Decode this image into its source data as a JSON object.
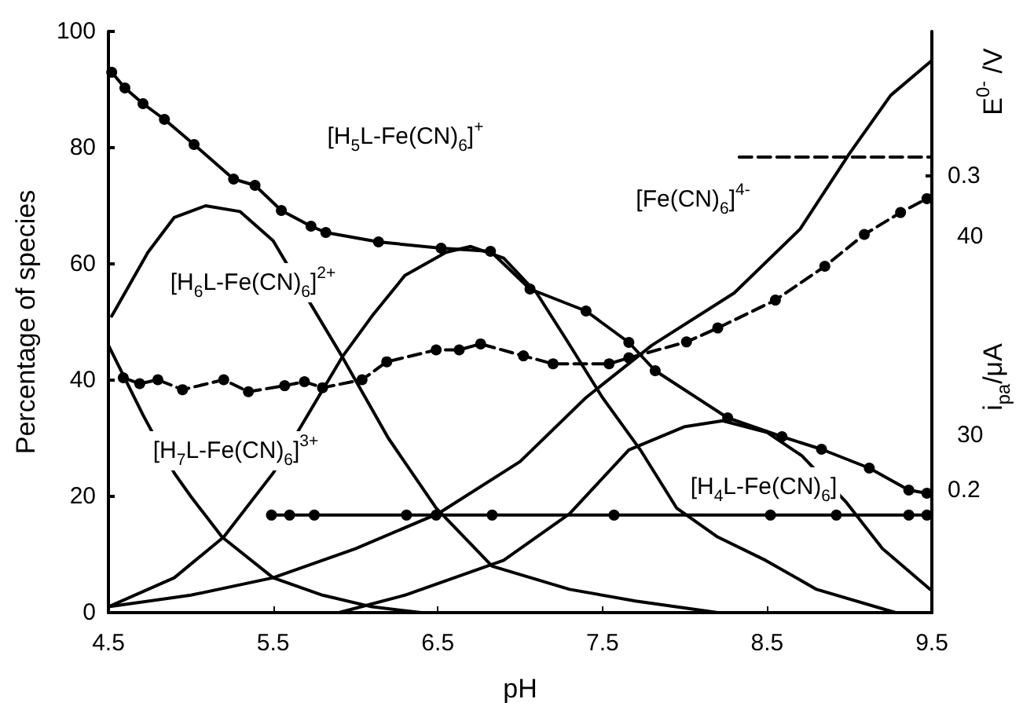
{
  "chart_data": {
    "type": "line",
    "xlabel": "pH",
    "ylabel": "Percentage of species",
    "y2label": "E$^{0-}$ /V",
    "y3label": "i$_{pa}$/μA",
    "xlim": [
      4.5,
      9.5
    ],
    "xticks": [
      4.5,
      5.5,
      6.5,
      7.5,
      8.5,
      9.5
    ],
    "ylim": [
      0,
      100
    ],
    "yticks": [
      0,
      20,
      40,
      60,
      80,
      100
    ],
    "y2lim": [
      0.161,
      0.346
    ],
    "y2ticks": [
      0.2,
      0.3
    ],
    "y3lim": [
      21.1,
      50.3
    ],
    "y3ticks": [
      30,
      40
    ],
    "marker": "none",
    "line_style": "solid",
    "series": [
      {
        "color": "#000000",
        "x": [
          4.5,
          4.71,
          4.9,
          5.0,
          5.19,
          5.5,
          5.8,
          6.1,
          6.4
        ],
        "values": [
          46,
          34,
          24,
          20,
          13,
          6,
          3,
          1,
          0
        ]
      },
      {
        "color": "#000000",
        "x": [
          4.52,
          4.74,
          4.9,
          5.09,
          5.3,
          5.5,
          5.73,
          5.92,
          6.2,
          6.49,
          6.83,
          7.3,
          7.7,
          8.2,
          8.5
        ],
        "values": [
          51,
          62,
          68,
          70,
          69,
          64,
          53,
          44,
          30,
          18,
          8,
          4,
          2,
          0,
          0
        ]
      },
      {
        "color": "#000000",
        "x": [
          4.5,
          4.9,
          5.2,
          5.5,
          5.71,
          5.92,
          6.1,
          6.3,
          6.55,
          6.7,
          6.9,
          7.1,
          7.28,
          7.5,
          7.73,
          7.95,
          8.2,
          8.49,
          8.8,
          9.28
        ],
        "values": [
          1,
          6,
          13,
          24,
          34,
          44,
          51,
          58,
          62,
          63,
          61,
          55,
          47,
          37,
          28,
          18,
          13,
          9,
          4,
          0
        ]
      },
      {
        "color": "#000000",
        "x": [
          5.9,
          6.3,
          6.9,
          7.3,
          7.66,
          8.0,
          8.23,
          8.5,
          8.71,
          8.98,
          9.2,
          9.49
        ],
        "values": [
          0,
          3,
          9,
          17,
          28,
          32,
          33,
          31,
          27,
          19,
          11,
          4
        ]
      },
      {
        "color": "#000000",
        "x": [
          4.5,
          5.0,
          5.5,
          6.0,
          6.5,
          7.0,
          7.4,
          7.8,
          8.3,
          8.7,
          9.0,
          9.25,
          9.5
        ],
        "values": [
          1,
          3,
          6,
          11,
          17,
          26,
          37,
          46,
          55,
          66,
          79,
          89,
          95
        ]
      },
      {
        "color": "#000000",
        "axis": "y2",
        "marker": "circle",
        "x": [
          4.52,
          4.6,
          4.71,
          4.84,
          5.02,
          5.26,
          5.39,
          5.55,
          5.73,
          5.82,
          6.14,
          6.52,
          6.82,
          7.06,
          7.4,
          7.66,
          7.82,
          8.26,
          8.59,
          8.83,
          9.12,
          9.36,
          9.47
        ],
        "values": [
          0.333,
          0.328,
          0.323,
          0.318,
          0.31,
          0.299,
          0.297,
          0.289,
          0.284,
          0.282,
          0.279,
          0.277,
          0.276,
          0.264,
          0.257,
          0.247,
          0.238,
          0.223,
          0.217,
          0.213,
          0.207,
          0.2,
          0.199
        ]
      },
      {
        "color": "#000000",
        "axis": "y3",
        "marker": "circle",
        "line_style": "dashed",
        "x": [
          4.59,
          4.69,
          4.8,
          4.95,
          5.2,
          5.35,
          5.57,
          5.69,
          5.8,
          6.04,
          6.19,
          6.49,
          6.63,
          6.76,
          7.02,
          7.2,
          7.54,
          7.66,
          8.01,
          8.2,
          8.55,
          8.85,
          9.09,
          9.31,
          9.47
        ],
        "values": [
          32.9,
          32.6,
          32.8,
          32.3,
          32.8,
          32.2,
          32.5,
          32.7,
          32.4,
          32.8,
          33.7,
          34.3,
          34.3,
          34.6,
          34.0,
          33.6,
          33.6,
          33.9,
          34.7,
          35.4,
          36.8,
          38.5,
          40.1,
          41.2,
          41.9
        ]
      },
      {
        "color": "#000000",
        "axis": "y3",
        "marker": "circle",
        "x": [
          5.49,
          5.6,
          5.75,
          6.31,
          6.49,
          6.83,
          7.57,
          8.52,
          8.92,
          9.36,
          9.47
        ],
        "values": [
          26.0,
          26.0,
          26.0,
          26.0,
          26.0,
          26.0,
          26.0,
          26.0,
          26.0,
          26.0,
          26.0
        ]
      },
      {
        "color": "#000000",
        "axis": "y2",
        "line_style": "dashed",
        "x": [
          8.33,
          9.5
        ],
        "values": [
          0.306,
          0.306
        ]
      }
    ],
    "annotations": [
      "[H$_{5}$L-Fe(CN)$_{6}$]$^{+}$",
      "[H$_{6}$L-Fe(CN)$_{6}$]$^{2+}$",
      "[H$_{7}$L-Fe(CN)$_{6}$]$^{3+}$",
      "[Fe(CN)$_{6}$]$^{4-}$",
      "[H$_{4}$L-Fe(CN)$_{6}$]"
    ]
  }
}
